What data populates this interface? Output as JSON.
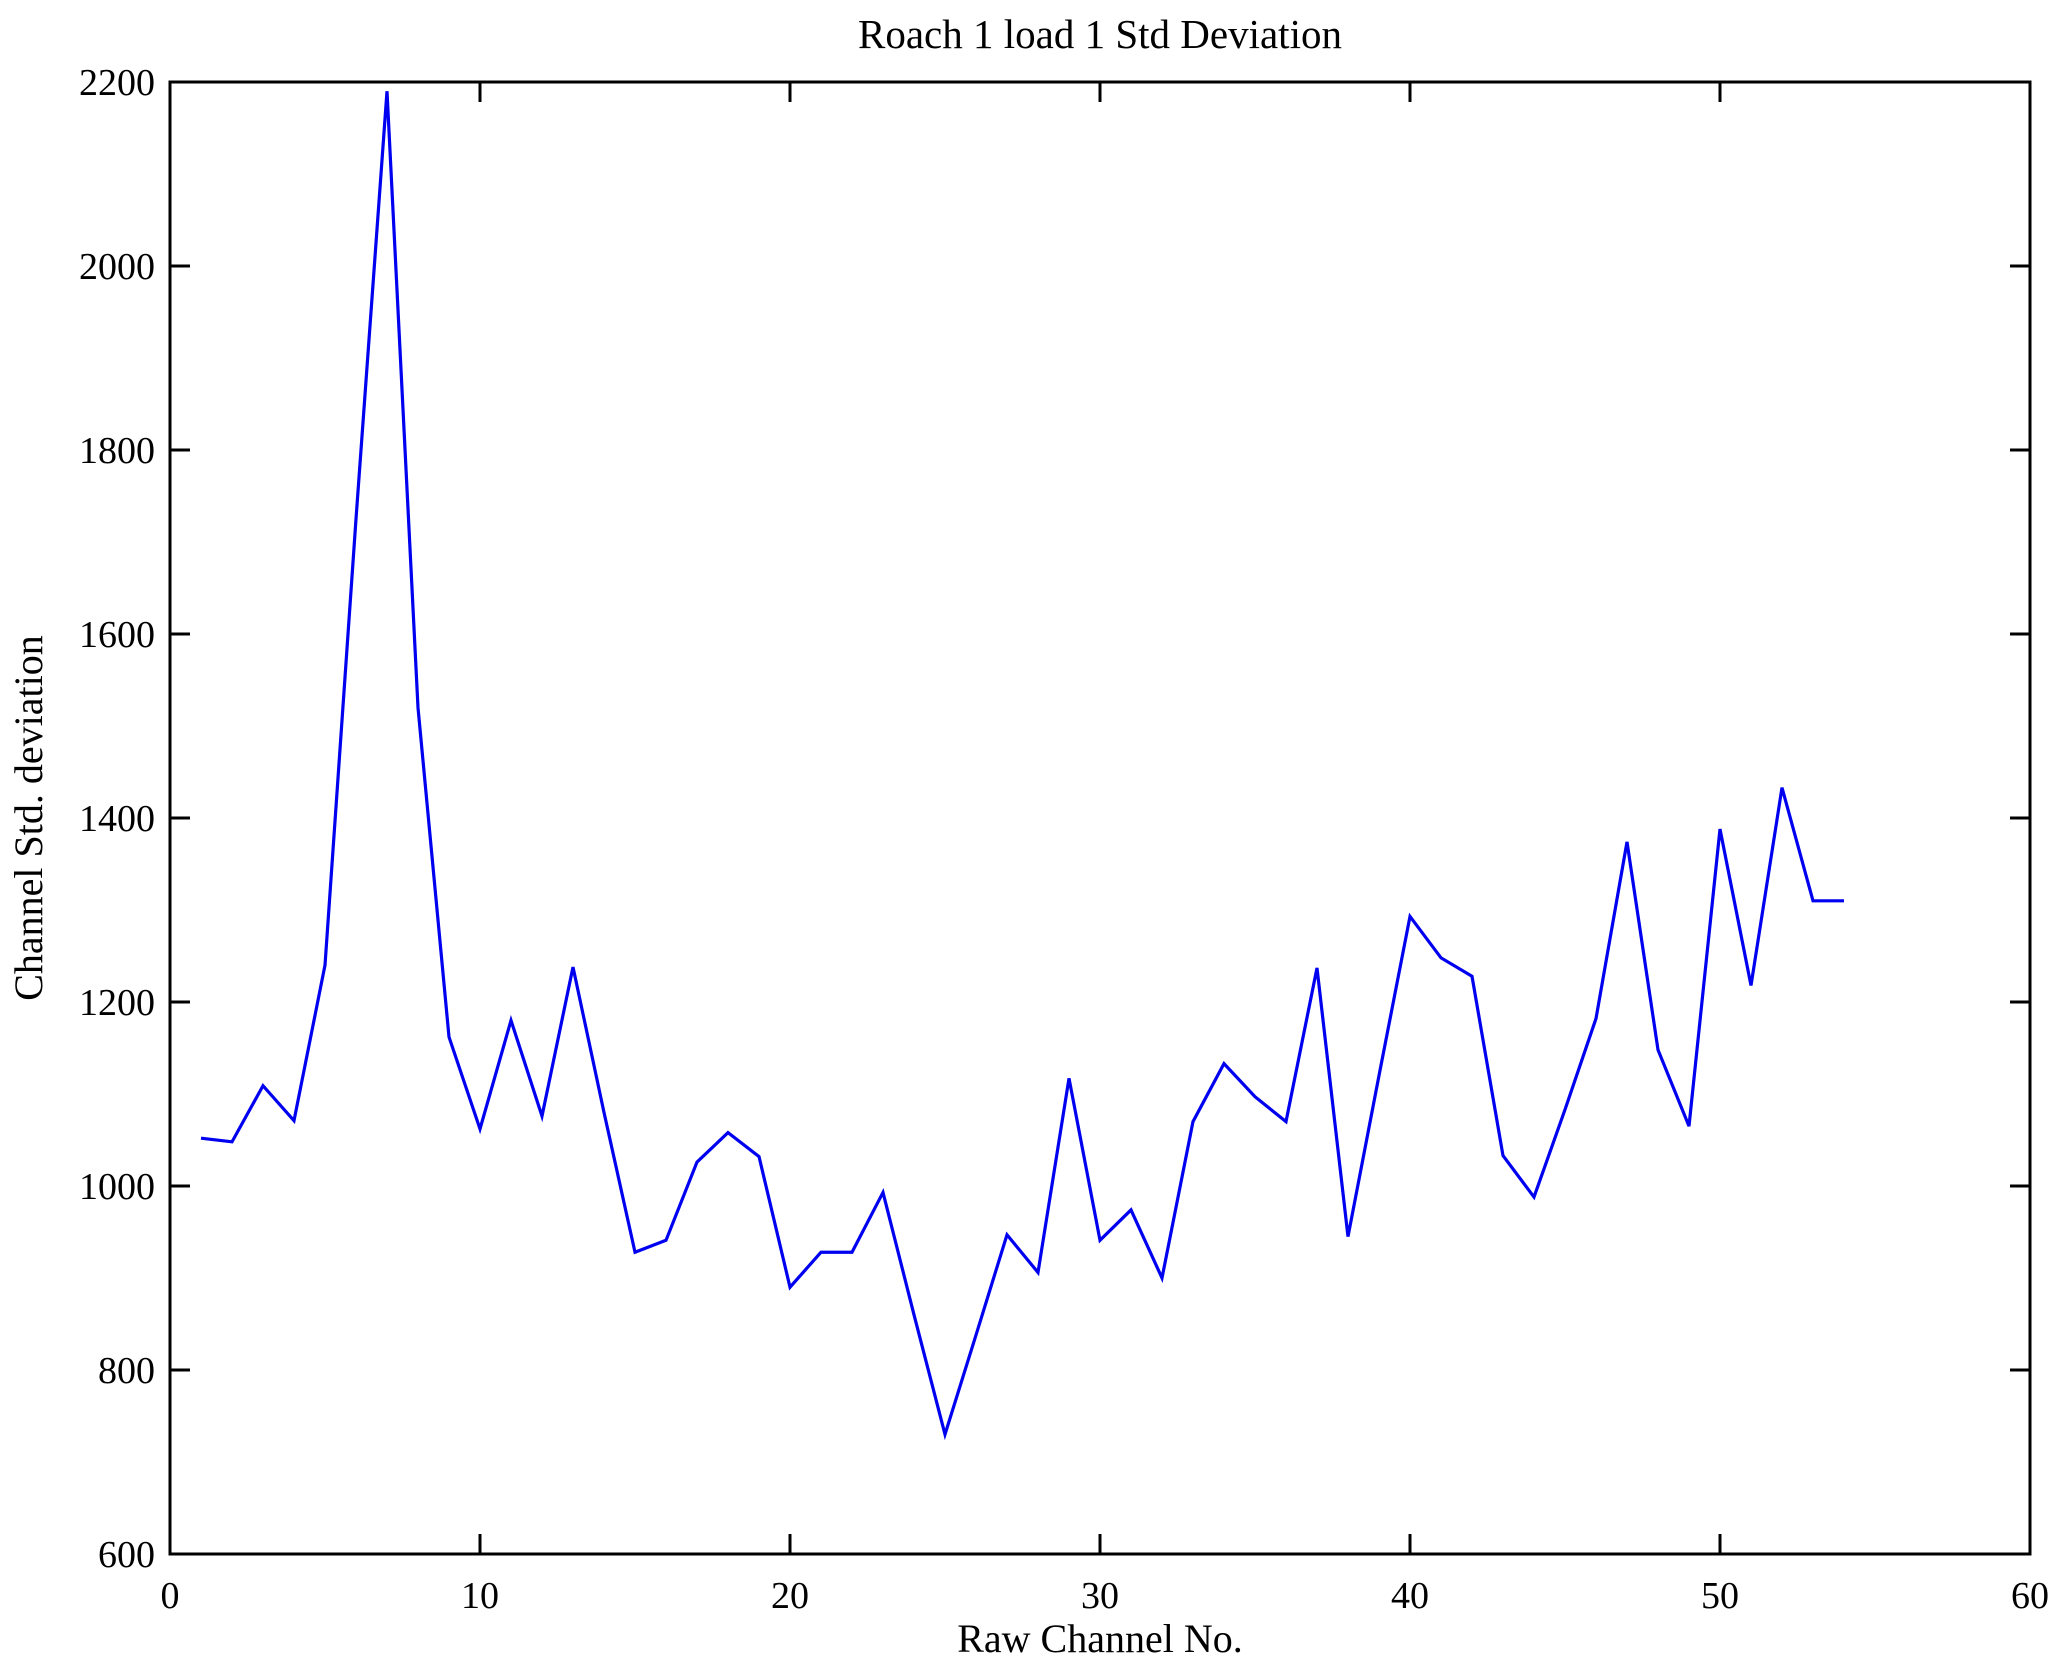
{
  "chart_data": {
    "type": "line",
    "title": "Roach 1 load 1 Std Deviation",
    "xlabel": "Raw Channel No.",
    "ylabel": "Channel Std. deviation",
    "x": [
      1,
      2,
      3,
      4,
      5,
      6,
      7,
      8,
      9,
      10,
      11,
      12,
      13,
      14,
      15,
      16,
      17,
      18,
      19,
      20,
      21,
      22,
      23,
      24,
      25,
      26,
      27,
      28,
      29,
      30,
      31,
      32,
      33,
      34,
      35,
      36,
      37,
      38,
      39,
      40,
      41,
      42,
      43,
      44,
      45,
      46,
      47,
      48,
      49,
      50,
      51,
      52,
      53,
      54
    ],
    "values": [
      1052,
      1048,
      1109,
      1071,
      1240,
      1725,
      2190,
      1520,
      1162,
      1062,
      1180,
      1076,
      1238,
      1080,
      928,
      941,
      1026,
      1058,
      1032,
      890,
      928,
      928,
      993,
      860,
      730,
      838,
      947,
      906,
      1117,
      941,
      974,
      900,
      1070,
      1133,
      1097,
      1070,
      1237,
      945,
      1120,
      1293,
      1248,
      1228,
      1033,
      988,
      1083,
      1182,
      1374,
      1148,
      1065,
      1388,
      1218,
      1433,
      1310,
      1310
    ],
    "xlim": [
      0,
      60
    ],
    "ylim": [
      600,
      2200
    ],
    "xticks": [
      0,
      10,
      20,
      30,
      40,
      50,
      60
    ],
    "yticks": [
      600,
      800,
      1000,
      1200,
      1400,
      1600,
      1800,
      2000,
      2200
    ],
    "grid": false,
    "legend": null,
    "line_color": "#0000f0",
    "axis_color": "#000000",
    "background_color": "#ffffff"
  }
}
